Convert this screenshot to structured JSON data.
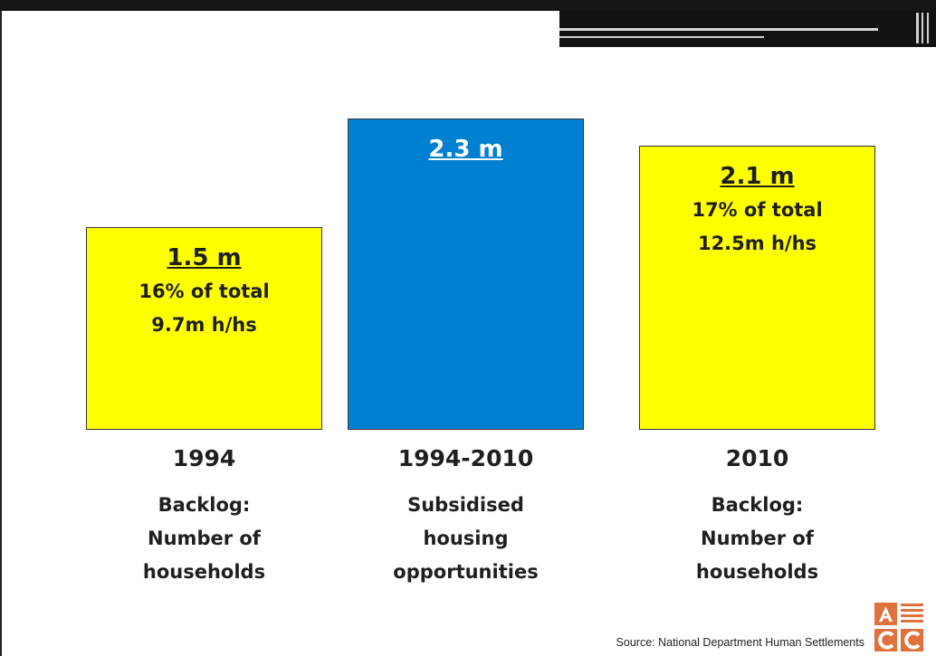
{
  "chart_data": {
    "type": "bar",
    "title": "",
    "xlabel": "",
    "ylabel": "",
    "ylim": [
      0,
      2.4
    ],
    "grid": false,
    "categories": [
      "1994",
      "1994-2010",
      "2010"
    ],
    "category_descriptions": [
      [
        "Backlog:",
        "Number of",
        "households"
      ],
      [
        "Subsidised",
        "housing",
        "opportunities"
      ],
      [
        "Backlog:",
        "Number of",
        "households"
      ]
    ],
    "values": [
      1.5,
      2.3,
      2.1
    ],
    "value_labels": [
      "1.5 m",
      "2.3 m",
      "2.1 m"
    ],
    "bar_sublabels": [
      [
        "16% of total",
        "9.7m h/hs"
      ],
      [],
      [
        "17% of total",
        "12.5m h/hs"
      ]
    ],
    "colors": [
      "#ffff00",
      "#0080d0",
      "#ffff00"
    ],
    "label_colors": [
      "#1f1f1f",
      "#ffffff",
      "#1f1f1f"
    ]
  },
  "source": "Source: National Department Human Settlements",
  "logo": {
    "letters": [
      "A",
      "C",
      "C"
    ],
    "color": "#e0703c"
  }
}
